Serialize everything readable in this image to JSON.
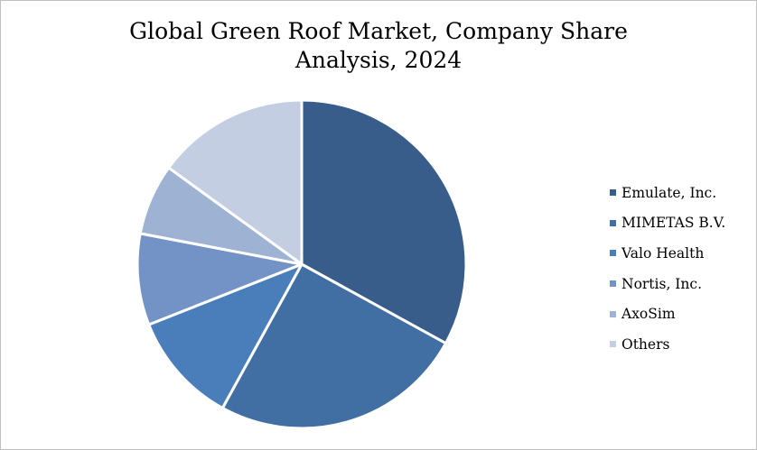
{
  "chart_data": {
    "type": "pie",
    "title_line1": "Global Green Roof Market, Company Share",
    "title_line2": "Analysis, 2024",
    "legend_position": "right",
    "series": [
      {
        "name": "Emulate, Inc.",
        "value": 33,
        "color": "#385D8A"
      },
      {
        "name": "MIMETAS B.V.",
        "value": 25,
        "color": "#416EA3"
      },
      {
        "name": "Valo Health",
        "value": 11,
        "color": "#4A7EBB"
      },
      {
        "name": "Nortis, Inc.",
        "value": 9,
        "color": "#7393C6"
      },
      {
        "name": "AxoSim",
        "value": 7,
        "color": "#9EB2D4"
      },
      {
        "name": "Others",
        "value": 15,
        "color": "#C3CEE2"
      }
    ]
  }
}
